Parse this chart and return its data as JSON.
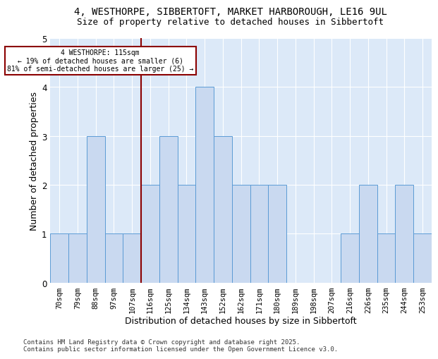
{
  "title1": "4, WESTHORPE, SIBBERTOFT, MARKET HARBOROUGH, LE16 9UL",
  "title2": "Size of property relative to detached houses in Sibbertoft",
  "xlabel": "Distribution of detached houses by size in Sibbertoft",
  "ylabel": "Number of detached properties",
  "categories": [
    "70sqm",
    "79sqm",
    "88sqm",
    "97sqm",
    "107sqm",
    "116sqm",
    "125sqm",
    "134sqm",
    "143sqm",
    "152sqm",
    "162sqm",
    "171sqm",
    "180sqm",
    "189sqm",
    "198sqm",
    "207sqm",
    "216sqm",
    "226sqm",
    "235sqm",
    "244sqm",
    "253sqm"
  ],
  "values": [
    1,
    1,
    3,
    1,
    1,
    2,
    3,
    2,
    4,
    3,
    2,
    2,
    2,
    0,
    0,
    0,
    1,
    2,
    1,
    2,
    1
  ],
  "bar_color": "#c9d9f0",
  "bar_edge_color": "#5b9bd5",
  "highlight_index": 5,
  "highlight_line_color": "#8b0000",
  "annotation_line1": "4 WESTHORPE: 115sqm",
  "annotation_line2": "← 19% of detached houses are smaller (6)",
  "annotation_line3": "81% of semi-detached houses are larger (25) →",
  "annotation_box_color": "#ffffff",
  "annotation_box_edge": "#8b0000",
  "ylim": [
    0,
    5
  ],
  "yticks": [
    0,
    1,
    2,
    3,
    4,
    5
  ],
  "footnote": "Contains HM Land Registry data © Crown copyright and database right 2025.\nContains public sector information licensed under the Open Government Licence v3.0.",
  "background_color": "#dce9f8",
  "fig_background": "#ffffff",
  "title_fontsize": 10,
  "subtitle_fontsize": 9,
  "axis_label_fontsize": 9,
  "tick_fontsize": 7.5,
  "footnote_fontsize": 6.5
}
